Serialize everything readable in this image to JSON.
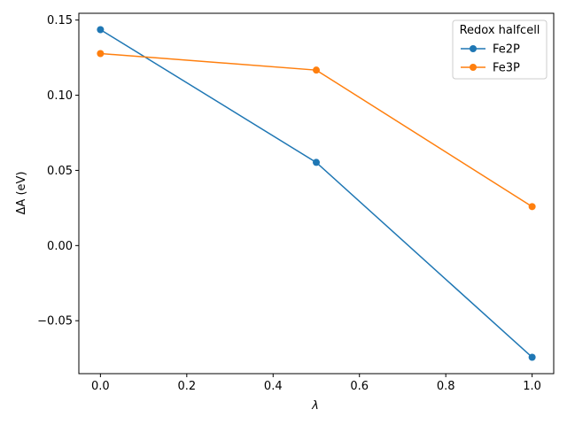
{
  "chart_data": {
    "type": "line",
    "x": [
      0.0,
      0.5,
      1.0
    ],
    "series": [
      {
        "name": "Fe2P",
        "values": [
          0.1436,
          0.0553,
          -0.0743
        ],
        "color": "#1f77b4"
      },
      {
        "name": "Fe3P",
        "values": [
          0.1277,
          0.1167,
          0.0259
        ],
        "color": "#ff7f0e"
      }
    ],
    "xlabel": "λ",
    "ylabel": "ΔA (eV)",
    "xlim": [
      -0.05,
      1.05
    ],
    "ylim": [
      -0.0852,
      0.1545
    ],
    "xticks": [
      0.0,
      0.2,
      0.4,
      0.6,
      0.8,
      1.0
    ],
    "xtick_labels": [
      "0.0",
      "0.2",
      "0.4",
      "0.6",
      "0.8",
      "1.0"
    ],
    "yticks": [
      -0.05,
      0.0,
      0.05,
      0.1,
      0.15
    ],
    "ytick_labels": [
      "−0.05",
      "0.00",
      "0.05",
      "0.10",
      "0.15"
    ],
    "grid": false,
    "legend": {
      "title": "Redox halfcell",
      "position": "top-right"
    },
    "markers": "circle"
  }
}
